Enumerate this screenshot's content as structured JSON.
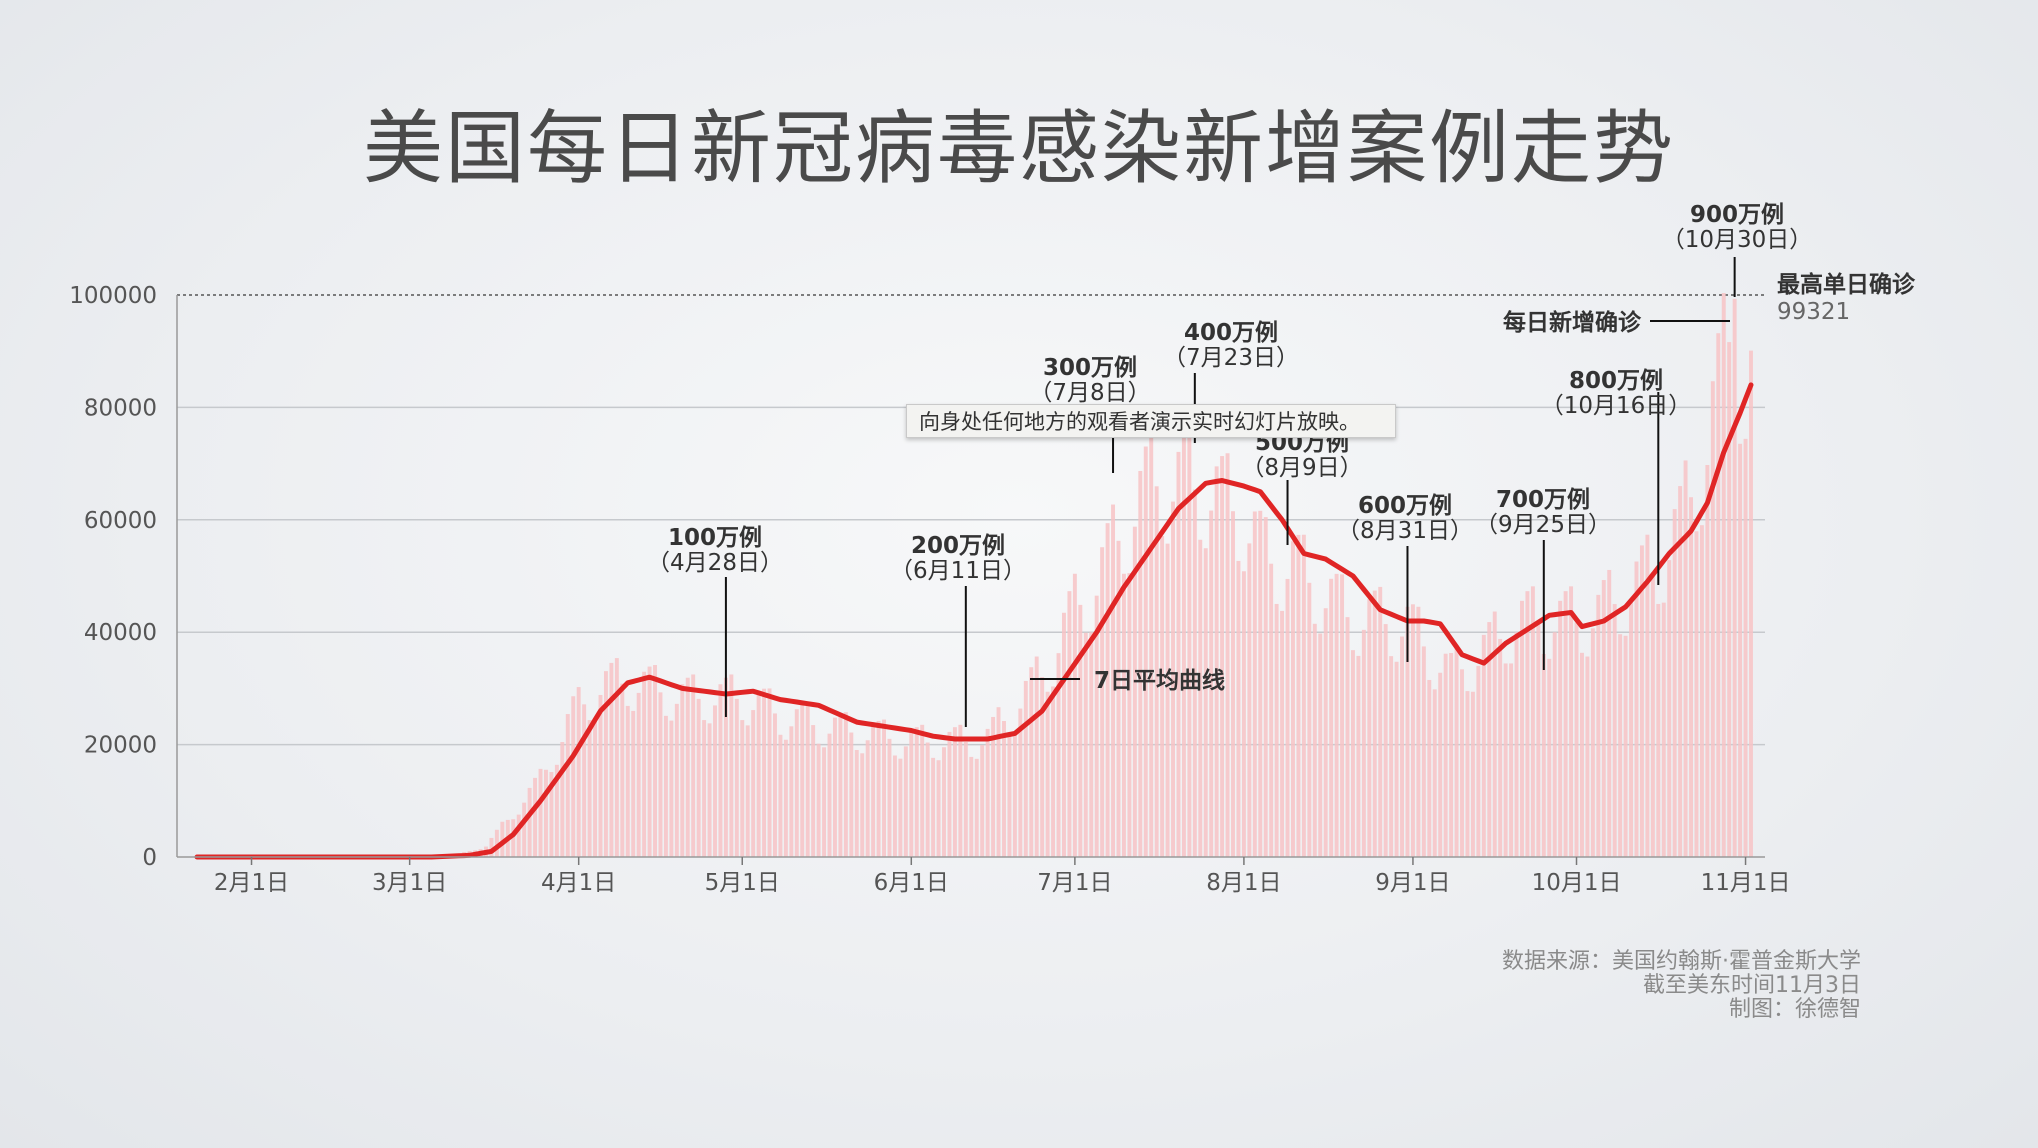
{
  "title": "美国每日新冠病毒感染新增案例走势",
  "tooltip": "向身处任何地方的观看者演示实时幻灯片放映。",
  "source": {
    "line1": "数据来源：美国约翰斯·霍普金斯大学",
    "line2": "截至美东时间11月3日",
    "line3": "制图：徐德智"
  },
  "chart_data": {
    "type": "bar",
    "x_start": "2020-01-22",
    "x_end": "2020-11-02",
    "ylim": [
      0,
      100000
    ],
    "y_ticks": [
      0,
      20000,
      40000,
      60000,
      80000,
      100000
    ],
    "x_ticks": [
      "2月1日",
      "3月1日",
      "4月1日",
      "5月1日",
      "6月1日",
      "7月1日",
      "8月1日",
      "9月1日",
      "10月1日",
      "11月1日"
    ],
    "x_tick_dates": [
      "2020-02-01",
      "2020-03-01",
      "2020-04-01",
      "2020-05-01",
      "2020-06-01",
      "2020-07-01",
      "2020-08-01",
      "2020-09-01",
      "2020-10-01",
      "2020-11-01"
    ],
    "bar_color": "#f7c3c6",
    "line_color": "#e02525",
    "series": [
      {
        "name": "每日新增确诊",
        "anchors": [
          [
            "2020-01-22",
            0
          ],
          [
            "2020-03-01",
            0
          ],
          [
            "2020-03-10",
            500
          ],
          [
            "2020-03-15",
            2000
          ],
          [
            "2020-03-20",
            8000
          ],
          [
            "2020-03-25",
            14000
          ],
          [
            "2020-03-31",
            26000
          ],
          [
            "2020-04-05",
            31000
          ],
          [
            "2020-04-10",
            32000
          ],
          [
            "2020-04-20",
            29000
          ],
          [
            "2020-05-01",
            29000
          ],
          [
            "2020-05-10",
            25000
          ],
          [
            "2020-05-20",
            23000
          ],
          [
            "2020-06-01",
            21000
          ],
          [
            "2020-06-10",
            21000
          ],
          [
            "2020-06-15",
            21500
          ],
          [
            "2020-06-25",
            33000
          ],
          [
            "2020-07-01",
            45000
          ],
          [
            "2020-07-05",
            50000
          ],
          [
            "2020-07-10",
            60000
          ],
          [
            "2020-07-15",
            68000
          ],
          [
            "2020-07-20",
            68000
          ],
          [
            "2020-07-25",
            67000
          ],
          [
            "2020-08-01",
            62000
          ],
          [
            "2020-08-05",
            54000
          ],
          [
            "2020-08-10",
            53000
          ],
          [
            "2020-08-20",
            44000
          ],
          [
            "2020-08-31",
            42000
          ],
          [
            "2020-09-08",
            33000
          ],
          [
            "2020-09-15",
            38000
          ],
          [
            "2020-09-20",
            43000
          ],
          [
            "2020-09-25",
            43000
          ],
          [
            "2020-10-01",
            43000
          ],
          [
            "2020-10-05",
            44000
          ],
          [
            "2020-10-15",
            52000
          ],
          [
            "2020-10-20",
            60000
          ],
          [
            "2020-10-25",
            75000
          ],
          [
            "2020-10-30",
            99321
          ],
          [
            "2020-11-01",
            80000
          ],
          [
            "2020-11-02",
            85000
          ]
        ]
      },
      {
        "name": "7日平均曲线",
        "anchors": [
          [
            "2020-01-22",
            0
          ],
          [
            "2020-03-05",
            0
          ],
          [
            "2020-03-12",
            300
          ],
          [
            "2020-03-16",
            1000
          ],
          [
            "2020-03-20",
            4000
          ],
          [
            "2020-03-25",
            10000
          ],
          [
            "2020-03-31",
            18000
          ],
          [
            "2020-04-05",
            26000
          ],
          [
            "2020-04-10",
            31000
          ],
          [
            "2020-04-14",
            32000
          ],
          [
            "2020-04-20",
            30000
          ],
          [
            "2020-04-28",
            29000
          ],
          [
            "2020-05-03",
            29500
          ],
          [
            "2020-05-08",
            28000
          ],
          [
            "2020-05-15",
            27000
          ],
          [
            "2020-05-22",
            24000
          ],
          [
            "2020-06-01",
            22500
          ],
          [
            "2020-06-05",
            21500
          ],
          [
            "2020-06-09",
            21000
          ],
          [
            "2020-06-15",
            21000
          ],
          [
            "2020-06-20",
            22000
          ],
          [
            "2020-06-25",
            26000
          ],
          [
            "2020-06-30",
            33000
          ],
          [
            "2020-07-05",
            40000
          ],
          [
            "2020-07-10",
            48000
          ],
          [
            "2020-07-15",
            55000
          ],
          [
            "2020-07-20",
            62000
          ],
          [
            "2020-07-25",
            66500
          ],
          [
            "2020-07-28",
            67000
          ],
          [
            "2020-08-01",
            66000
          ],
          [
            "2020-08-04",
            65000
          ],
          [
            "2020-08-08",
            60000
          ],
          [
            "2020-08-12",
            54000
          ],
          [
            "2020-08-16",
            53000
          ],
          [
            "2020-08-21",
            50000
          ],
          [
            "2020-08-26",
            44000
          ],
          [
            "2020-08-31",
            42000
          ],
          [
            "2020-09-03",
            42000
          ],
          [
            "2020-09-06",
            41500
          ],
          [
            "2020-09-10",
            36000
          ],
          [
            "2020-09-14",
            34500
          ],
          [
            "2020-09-18",
            38000
          ],
          [
            "2020-09-22",
            40500
          ],
          [
            "2020-09-26",
            43000
          ],
          [
            "2020-09-30",
            43500
          ],
          [
            "2020-10-02",
            41000
          ],
          [
            "2020-10-06",
            42000
          ],
          [
            "2020-10-10",
            44500
          ],
          [
            "2020-10-14",
            49000
          ],
          [
            "2020-10-18",
            54000
          ],
          [
            "2020-10-22",
            58000
          ],
          [
            "2020-10-25",
            63000
          ],
          [
            "2020-10-28",
            72000
          ],
          [
            "2020-10-31",
            79000
          ],
          [
            "2020-11-02",
            84000
          ]
        ]
      }
    ],
    "milestones": [
      {
        "label": "100万例",
        "date_label": "（4月28日）",
        "date": "2020-04-28"
      },
      {
        "label": "200万例",
        "date_label": "（6月11日）",
        "date": "2020-06-11"
      },
      {
        "label": "300万例",
        "date_label": "（7月8日）",
        "date": "2020-07-08"
      },
      {
        "label": "400万例",
        "date_label": "（7月23日）",
        "date": "2020-07-23"
      },
      {
        "label": "500万例",
        "date_label": "（8月9日）",
        "date": "2020-08-09"
      },
      {
        "label": "600万例",
        "date_label": "（8月31日）",
        "date": "2020-08-31"
      },
      {
        "label": "700万例",
        "date_label": "（9月25日）",
        "date": "2020-09-25"
      },
      {
        "label": "800万例",
        "date_label": "（10月16日）",
        "date": "2020-10-16"
      },
      {
        "label": "900万例",
        "date_label": "（10月30日）",
        "date": "2020-10-30"
      }
    ],
    "series_labels": {
      "daily": "每日新增确诊",
      "avg": "7日平均曲线"
    },
    "peak": {
      "label": "最高单日确诊",
      "value": "99321",
      "date": "2020-10-30"
    }
  }
}
